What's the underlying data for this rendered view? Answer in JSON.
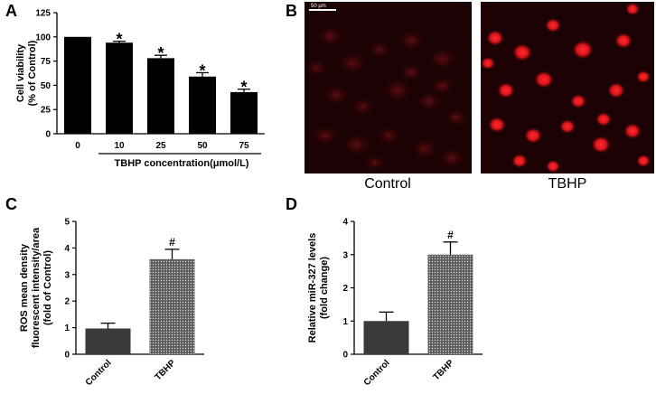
{
  "panels": {
    "a": {
      "label": "A"
    },
    "b": {
      "label": "B",
      "scale_bar": "50 μm",
      "captions": [
        "Control",
        "TBHP"
      ]
    },
    "c": {
      "label": "C"
    },
    "d": {
      "label": "D"
    }
  },
  "chart_data": [
    {
      "id": "A",
      "type": "bar",
      "categories": [
        "0",
        "10",
        "25",
        "50",
        "75"
      ],
      "values": [
        100,
        94,
        78,
        59,
        43
      ],
      "errors": [
        0,
        1.5,
        3,
        4,
        3
      ],
      "significance": [
        "",
        "*",
        "*",
        "*",
        "*"
      ],
      "xlabel": "TBHP concentration(μmol/L)",
      "ylabel_lines": [
        "Cell viability",
        "(% of Control)"
      ],
      "ylim": [
        0,
        125
      ],
      "yticks": [
        "0",
        "25",
        "50",
        "75",
        "100",
        "125"
      ],
      "bar_color": "#000000"
    },
    {
      "id": "C",
      "type": "bar",
      "categories": [
        "Control",
        "TBHP"
      ],
      "values": [
        0.97,
        3.58
      ],
      "errors": [
        0.2,
        0.37
      ],
      "significance": [
        "",
        "#"
      ],
      "ylabel_lines": [
        "ROS mean density",
        "fluorescent intensity/area",
        "(fold of Control)"
      ],
      "ylim": [
        0,
        5
      ],
      "yticks": [
        "0",
        "1",
        "2",
        "3",
        "4",
        "5"
      ],
      "bar_colors": [
        "#3a3a3a",
        "#6e6e6e"
      ]
    },
    {
      "id": "D",
      "type": "bar",
      "categories": [
        "Control",
        "TBHP"
      ],
      "values": [
        1.0,
        3.0
      ],
      "errors": [
        0.27,
        0.38
      ],
      "significance": [
        "",
        "#"
      ],
      "ylabel_lines": [
        "Relative miR-327 levels",
        "(fold change)"
      ],
      "ylim": [
        0,
        4
      ],
      "yticks": [
        "0",
        "1",
        "2",
        "3",
        "4"
      ],
      "bar_colors": [
        "#3a3a3a",
        "#6e6e6e"
      ]
    }
  ]
}
